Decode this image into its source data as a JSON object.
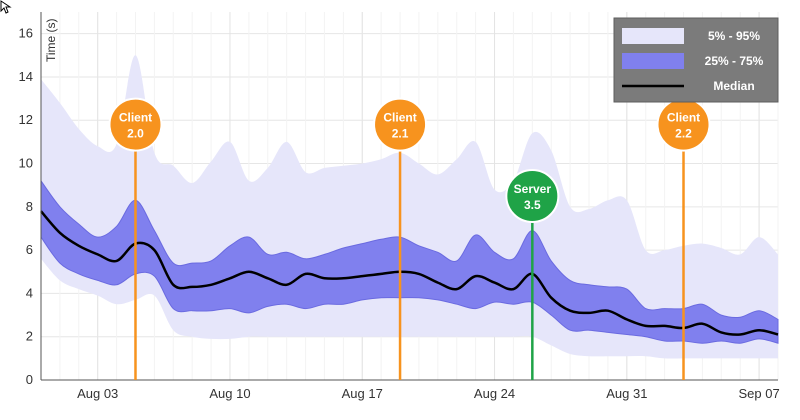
{
  "chart_data": {
    "type": "area",
    "ylabel": "Time (s)",
    "ylim": [
      0,
      17
    ],
    "x_range": [
      "2024-07-31",
      "2024-09-08"
    ],
    "grid": true,
    "legend_position": "top-right",
    "y_ticks": [
      0,
      2,
      4,
      6,
      8,
      10,
      12,
      14,
      16
    ],
    "x_ticks": [
      {
        "date": "2024-08-03",
        "label": "Aug 03"
      },
      {
        "date": "2024-08-10",
        "label": "Aug 10"
      },
      {
        "date": "2024-08-17",
        "label": "Aug 17"
      },
      {
        "date": "2024-08-24",
        "label": "Aug 24"
      },
      {
        "date": "2024-08-31",
        "label": "Aug 31"
      },
      {
        "date": "2024-09-07",
        "label": "Sep 07"
      }
    ],
    "x": [
      "2024-07-31",
      "2024-08-01",
      "2024-08-02",
      "2024-08-03",
      "2024-08-04",
      "2024-08-05",
      "2024-08-06",
      "2024-08-07",
      "2024-08-08",
      "2024-08-09",
      "2024-08-10",
      "2024-08-11",
      "2024-08-12",
      "2024-08-13",
      "2024-08-14",
      "2024-08-15",
      "2024-08-16",
      "2024-08-17",
      "2024-08-18",
      "2024-08-19",
      "2024-08-20",
      "2024-08-21",
      "2024-08-22",
      "2024-08-23",
      "2024-08-24",
      "2024-08-25",
      "2024-08-26",
      "2024-08-27",
      "2024-08-28",
      "2024-08-29",
      "2024-08-30",
      "2024-08-31",
      "2024-09-01",
      "2024-09-02",
      "2024-09-03",
      "2024-09-04",
      "2024-09-05",
      "2024-09-06",
      "2024-09-07",
      "2024-09-08"
    ],
    "series": [
      {
        "name": "5% - 95%",
        "color": "#e6e6fa",
        "lower": [
          5.6,
          4.6,
          4.2,
          3.9,
          3.5,
          3.7,
          3.9,
          2.3,
          2.0,
          1.9,
          1.9,
          2.0,
          2.0,
          2.0,
          2.0,
          2.0,
          2.0,
          2.0,
          2.0,
          2.0,
          2.0,
          2.0,
          2.0,
          2.0,
          2.0,
          2.0,
          2.0,
          1.6,
          1.2,
          1.1,
          1.1,
          1.1,
          1.1,
          1.0,
          1.0,
          1.0,
          1.0,
          1.0,
          1.0,
          1.0
        ],
        "upper": [
          13.9,
          12.8,
          11.6,
          10.8,
          10.9,
          15.0,
          10.5,
          9.9,
          9.1,
          10.1,
          11.0,
          9.2,
          9.8,
          11.0,
          9.6,
          9.8,
          9.9,
          10.0,
          10.2,
          10.5,
          10.0,
          9.5,
          10.2,
          11.0,
          8.8,
          9.2,
          11.4,
          10.6,
          8.0,
          7.9,
          8.3,
          8.3,
          6.0,
          6.0,
          6.2,
          6.3,
          6.1,
          5.8,
          6.6,
          5.8
        ]
      },
      {
        "name": "25% - 75%",
        "color": "#8080ee",
        "lower": [
          6.6,
          5.4,
          4.9,
          4.6,
          4.4,
          4.9,
          4.8,
          3.3,
          3.2,
          3.2,
          3.3,
          3.1,
          3.4,
          3.5,
          3.3,
          3.5,
          3.5,
          3.7,
          3.8,
          3.8,
          3.8,
          3.7,
          3.5,
          3.3,
          3.6,
          3.5,
          3.6,
          3.0,
          2.3,
          2.3,
          2.2,
          2.1,
          2.0,
          1.8,
          1.8,
          1.7,
          1.8,
          1.7,
          1.9,
          1.7
        ],
        "upper": [
          9.2,
          8.0,
          7.2,
          6.6,
          7.1,
          8.3,
          6.9,
          5.4,
          5.4,
          5.5,
          6.2,
          6.6,
          5.8,
          5.9,
          5.6,
          5.8,
          6.1,
          6.3,
          6.5,
          6.6,
          6.2,
          5.9,
          5.5,
          6.7,
          5.9,
          5.6,
          6.9,
          5.5,
          4.6,
          4.4,
          4.3,
          4.2,
          3.3,
          3.3,
          3.3,
          3.5,
          3.0,
          2.9,
          3.2,
          2.8
        ]
      },
      {
        "name": "Median",
        "color": "#000000",
        "values": [
          7.8,
          6.8,
          6.2,
          5.8,
          5.5,
          6.3,
          6.0,
          4.4,
          4.3,
          4.4,
          4.7,
          5.0,
          4.7,
          4.4,
          4.9,
          4.7,
          4.7,
          4.8,
          4.9,
          5.0,
          4.9,
          4.5,
          4.2,
          4.8,
          4.5,
          4.2,
          4.9,
          3.8,
          3.2,
          3.1,
          3.2,
          2.8,
          2.5,
          2.5,
          2.4,
          2.6,
          2.2,
          2.1,
          2.3,
          2.1
        ]
      }
    ],
    "annotations": [
      {
        "label": [
          "Client",
          "2.0"
        ],
        "date": "2024-08-05",
        "value": 11.8,
        "color": "#f7931e"
      },
      {
        "label": [
          "Client",
          "2.1"
        ],
        "date": "2024-08-19",
        "value": 11.8,
        "color": "#f7931e"
      },
      {
        "label": [
          "Server",
          "3.5"
        ],
        "date": "2024-08-26",
        "value": 8.5,
        "color": "#1fa347"
      },
      {
        "label": [
          "Client",
          "2.2"
        ],
        "date": "2024-09-03",
        "value": 11.8,
        "color": "#f7931e"
      }
    ]
  },
  "legend": {
    "items": [
      {
        "label": "5% - 95%",
        "swatch": "band",
        "color": "#e6e6fa"
      },
      {
        "label": "25% - 75%",
        "swatch": "band",
        "color": "#8080ee"
      },
      {
        "label": "Median",
        "swatch": "line",
        "color": "#000000"
      }
    ],
    "background": "#7b7b7b"
  }
}
